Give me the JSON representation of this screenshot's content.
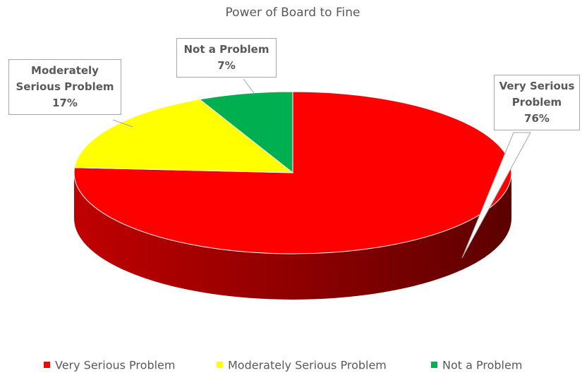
{
  "chart_data": {
    "type": "pie",
    "title": "Power of Board to Fine",
    "categories": [
      "Very Serious Problem",
      "Moderately Serious Problem",
      "Not a Problem"
    ],
    "values": [
      76,
      17,
      7
    ],
    "value_labels": [
      "76%",
      "17%",
      "7%"
    ],
    "colors": [
      "#ff0000",
      "#ffff00",
      "#00b050"
    ],
    "legend": "bottom"
  }
}
